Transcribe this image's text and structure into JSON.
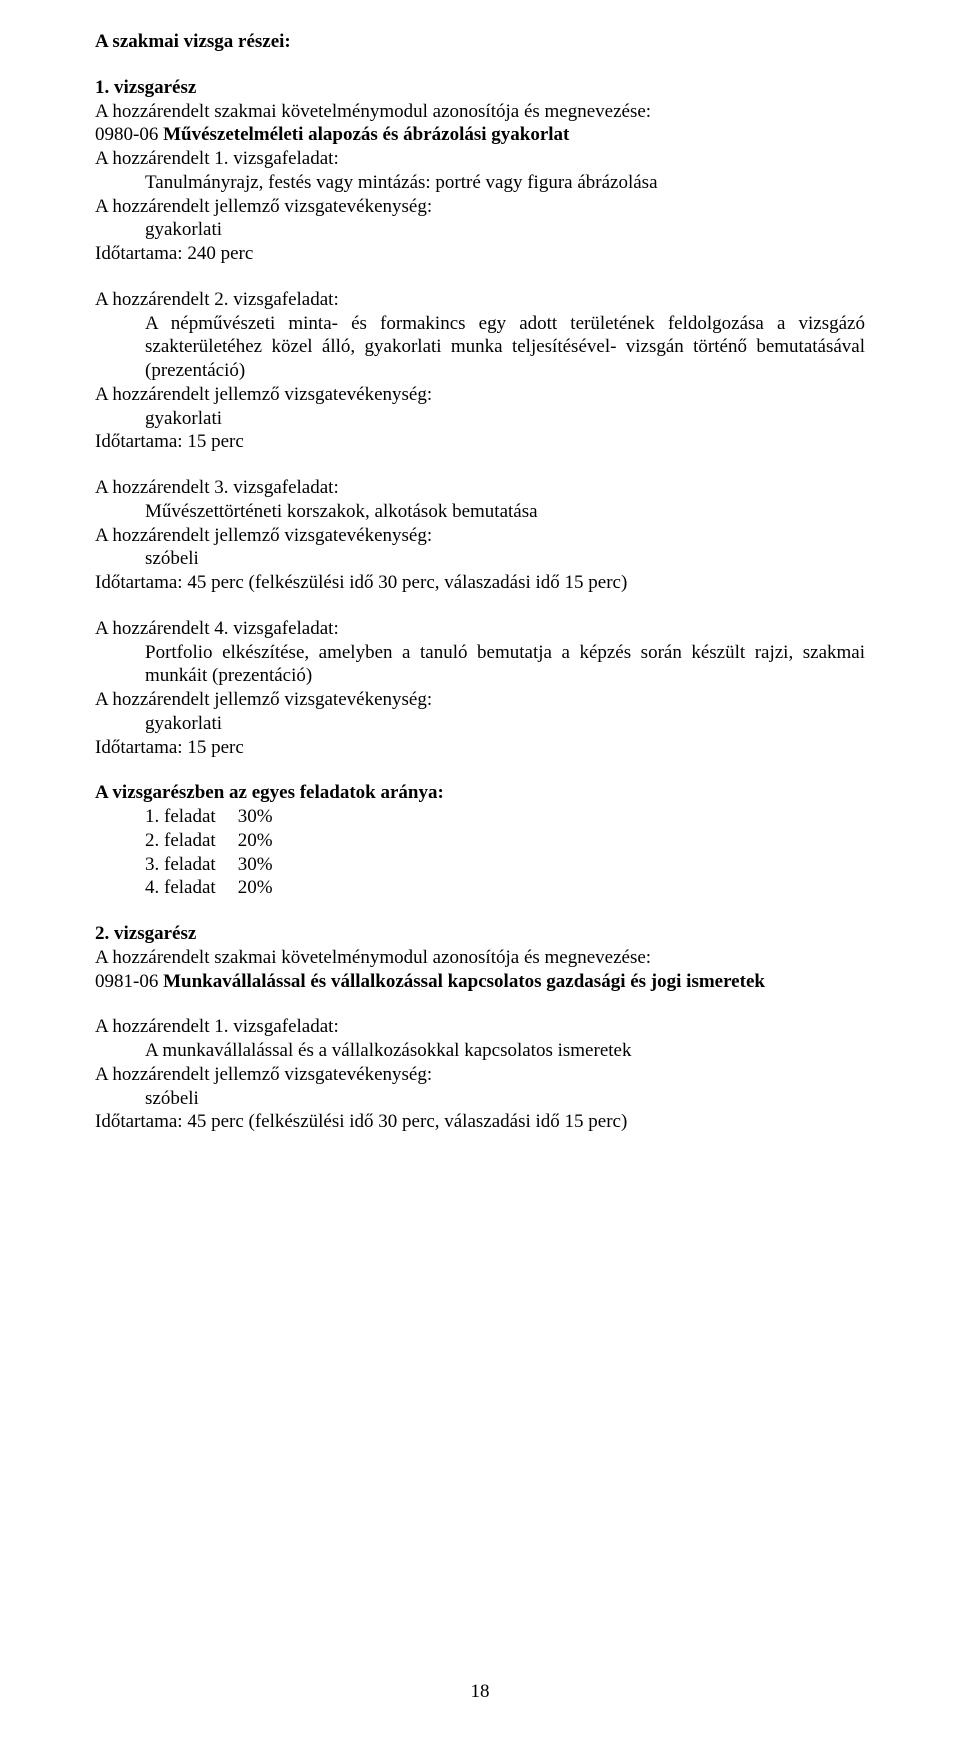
{
  "heading1": "A szakmai vizsga részei:",
  "section1": {
    "title": "1. vizsgarész",
    "line1": "A hozzárendelt szakmai követelménymodul azonosítója és megnevezése:",
    "code": "0980-06",
    "codeGap": "   ",
    "modTitle": "Művészetelméleti alapozás és ábrázolási gyakorlat",
    "task1": {
      "h": "A hozzárendelt 1. vizsgafeladat:",
      "desc": "Tanulmányrajz, festés vagy mintázás: portré vagy figura ábrázolása",
      "act": "A hozzárendelt jellemző vizsgatevékenység:",
      "actType": "gyakorlati",
      "dur": "Időtartama:  240 perc"
    },
    "task2": {
      "h": "A hozzárendelt 2. vizsgafeladat:",
      "desc": "A népművészeti minta- és formakincs egy adott területének feldolgozása a vizsgázó szakterületéhez közel álló, gyakorlati munka teljesítésével- vizsgán történő bemutatásával (prezentáció)",
      "act": "A hozzárendelt jellemző vizsgatevékenység:",
      "actType": "gyakorlati",
      "dur": "Időtartama:  15 perc"
    },
    "task3": {
      "h": "A hozzárendelt 3. vizsgafeladat:",
      "desc": "Művészettörténeti korszakok, alkotások bemutatása",
      "act": "A hozzárendelt jellemző vizsgatevékenység:",
      "actType": "szóbeli",
      "dur": "Időtartama:  45 perc (felkészülési idő 30 perc, válaszadási idő 15 perc)"
    },
    "task4": {
      "h": "A hozzárendelt 4. vizsgafeladat:",
      "desc": "Portfolio elkészítése, amelyben a tanuló bemutatja a képzés során készült rajzi, szakmai munkáit (prezentáció)",
      "act": "A hozzárendelt jellemző vizsgatevékenység:",
      "actType": "gyakorlati",
      "dur": "Időtartama:  15 perc"
    },
    "ratios": {
      "title": "A vizsgarészben az egyes feladatok aránya:",
      "items": [
        {
          "label": "1. feladat",
          "pct": "30%"
        },
        {
          "label": "2. feladat",
          "pct": "20%"
        },
        {
          "label": "3. feladat",
          "pct": "30%"
        },
        {
          "label": "4. feladat",
          "pct": "20%"
        }
      ]
    }
  },
  "section2": {
    "title": "2. vizsgarész",
    "line1": "A hozzárendelt szakmai követelménymodul azonosítója és megnevezése:",
    "code": "0981-06",
    "codeGap": "   ",
    "modTitle": "Munkavállalással és vállalkozással kapcsolatos gazdasági és jogi ismeretek",
    "task1": {
      "h": "A hozzárendelt 1. vizsgafeladat:",
      "desc": "A munkavállalással és a vállalkozásokkal kapcsolatos ismeretek",
      "act": "A hozzárendelt jellemző vizsgatevékenység:",
      "actType": "szóbeli",
      "dur": "Időtartama:  45 perc (felkészülési idő 30 perc, válaszadási idő 15 perc)"
    }
  },
  "pageNumber": "18"
}
